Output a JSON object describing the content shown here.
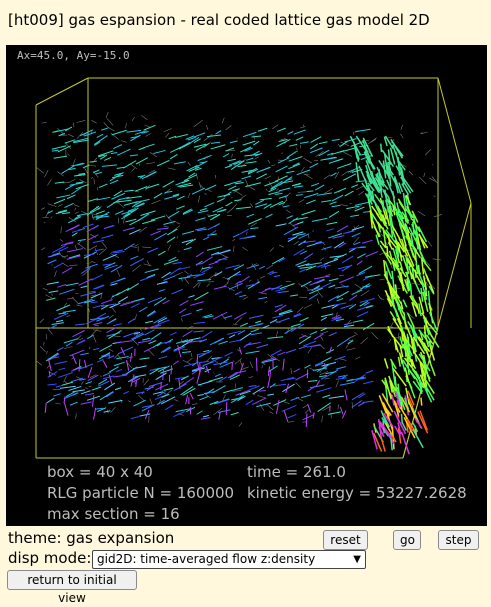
{
  "title": "[ht009] gas espansion - real coded lattice gas model 2D",
  "view": {
    "angles": "Ax=45.0, Ay=-15.0"
  },
  "stats": {
    "box": "box = 40 x 40",
    "time": "time = 261.0",
    "particles": "RLG particle N = 160000",
    "energy": "kinetic energy = 53227.2628",
    "max_section": "max section = 16"
  },
  "controls": {
    "theme": "theme: gas expansion",
    "reset": "reset",
    "go": "go",
    "step": "step",
    "disp_label": "disp mode:",
    "disp_value": "gid2D: time-averaged flow z:density",
    "return": "return to initial view"
  },
  "colors": {
    "background": "#fff8dc",
    "canvas": "#000000",
    "box_edges": "#c8c832",
    "mesh": "#8a8a8a"
  }
}
